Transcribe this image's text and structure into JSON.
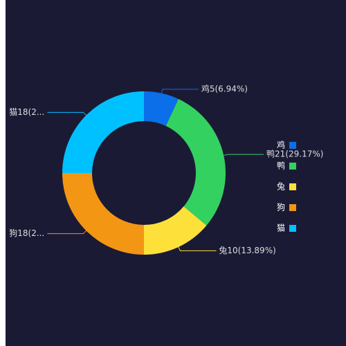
{
  "chart_data": {
    "type": "donut",
    "categories": [
      "鸡",
      "鸭",
      "兔",
      "狗",
      "猫"
    ],
    "values": [
      5,
      21,
      10,
      18,
      18
    ],
    "value_labels": [
      "鸡5(6.94%)",
      "鸭21(29.17%)",
      "兔10(13.89%)",
      "狗18(2...",
      "猫18(2..."
    ],
    "colors": [
      "#0a6fe8",
      "#33d160",
      "#fde13a",
      "#f39614",
      "#00c1ff"
    ],
    "legend": "right"
  }
}
